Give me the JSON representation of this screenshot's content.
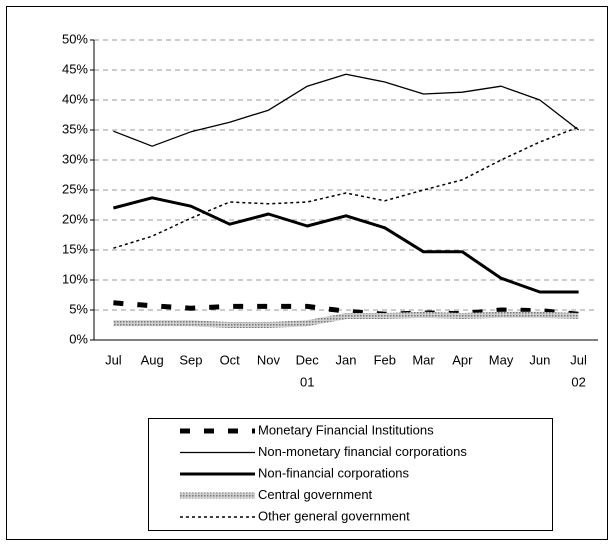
{
  "chart_data": {
    "type": "line",
    "categories": [
      "Jul",
      "Aug",
      "Sep",
      "Oct",
      "Nov",
      "Dec",
      "Jan",
      "Feb",
      "Mar",
      "Apr",
      "May",
      "Jun",
      "Jul"
    ],
    "x_sublabels": [
      null,
      null,
      null,
      null,
      null,
      "01",
      null,
      null,
      null,
      null,
      null,
      null,
      "02"
    ],
    "series": [
      {
        "name": "Monetary Financial Institutions",
        "color": "#000000",
        "values": [
          6.2,
          5.7,
          5.3,
          5.6,
          5.6,
          5.6,
          4.8,
          4.3,
          4.5,
          4.4,
          5.0,
          4.9,
          4.3
        ]
      },
      {
        "name": "Non-monetary financial corporations",
        "color": "#000000",
        "values": [
          34.8,
          32.3,
          34.7,
          36.3,
          38.3,
          42.3,
          44.3,
          43.0,
          41.0,
          41.3,
          42.3,
          40.0,
          35.0
        ]
      },
      {
        "name": "Non-financial corporations",
        "color": "#000000",
        "values": [
          22.0,
          23.7,
          22.3,
          19.3,
          21.0,
          19.0,
          20.7,
          18.7,
          14.7,
          14.7,
          10.3,
          8.0,
          8.0
        ]
      },
      {
        "name": "Central government",
        "color": "#999999",
        "values": [
          2.8,
          2.8,
          2.8,
          2.5,
          2.5,
          2.8,
          4.0,
          4.0,
          4.2,
          4.0,
          4.2,
          4.2,
          4.0
        ]
      },
      {
        "name": "Other general government",
        "color": "#000000",
        "values": [
          15.3,
          17.3,
          20.3,
          23.0,
          22.7,
          23.0,
          24.5,
          23.2,
          25.0,
          26.7,
          30.0,
          33.0,
          35.5
        ]
      }
    ],
    "ylim": [
      0,
      50
    ],
    "yticks": [
      {
        "value": 0,
        "label": "0%"
      },
      {
        "value": 5,
        "label": "5%"
      },
      {
        "value": 10,
        "label": "10%"
      },
      {
        "value": 15,
        "label": "15%"
      },
      {
        "value": 20,
        "label": "20%"
      },
      {
        "value": 25,
        "label": "25%"
      },
      {
        "value": 30,
        "label": "30%"
      },
      {
        "value": 35,
        "label": "35%"
      },
      {
        "value": 40,
        "label": "40%"
      },
      {
        "value": 45,
        "label": "45%"
      },
      {
        "value": 50,
        "label": "50%"
      }
    ],
    "grid": true
  }
}
